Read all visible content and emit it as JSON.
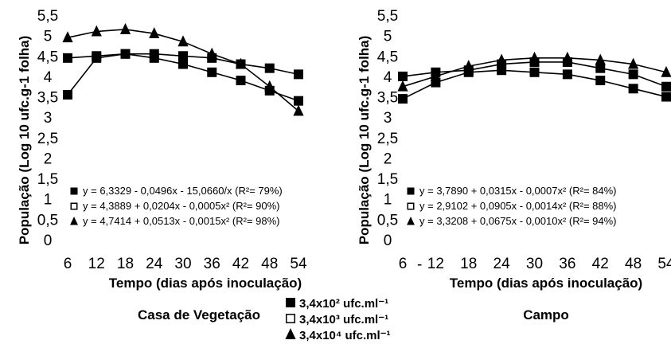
{
  "chart_data": [
    {
      "type": "line",
      "title": "Casa de Vegetação",
      "xlabel": "Tempo (dias após inoculação)",
      "ylabel": "População (Log 10 ufc.g-1 folha)",
      "x": [
        6,
        12,
        18,
        24,
        30,
        36,
        42,
        48,
        54
      ],
      "x_ticks": [
        "6",
        "12",
        "18",
        "24",
        "30",
        "36",
        "42",
        "48",
        "54"
      ],
      "y_ticks": [
        "0",
        "0,5",
        "1",
        "1,5",
        "2",
        "2,5",
        "3",
        "3,5",
        "4",
        "4,5",
        "5",
        "5,5"
      ],
      "ylim": [
        0,
        5.5
      ],
      "series": [
        {
          "marker": "square",
          "values": [
            3.55,
            4.45,
            4.55,
            4.45,
            4.3,
            4.1,
            3.9,
            3.65,
            3.4
          ]
        },
        {
          "marker": "square",
          "values": [
            4.45,
            4.5,
            4.55,
            4.55,
            4.5,
            4.45,
            4.3,
            4.2,
            4.05
          ]
        },
        {
          "marker": "triangle",
          "values": [
            4.95,
            5.1,
            5.15,
            5.05,
            4.85,
            4.55,
            4.3,
            3.75,
            3.15
          ]
        }
      ],
      "equations": [
        {
          "marker": "filled-square",
          "text": "y = 6,3329 - 0,0496x - 15,0660/x (R²= 79%)"
        },
        {
          "marker": "open-square",
          "text": "y = 4,3889 + 0,0204x - 0,0005x² (R²= 90%)"
        },
        {
          "marker": "filled-triangle",
          "text": "y = 4,7414 + 0,0513x - 0,0015x² (R²= 98%)"
        }
      ]
    },
    {
      "type": "line",
      "title": "Campo",
      "xlabel": "Tempo (dias após inoculação)",
      "ylabel": "População (Log 10 ufc.g-1 folha)",
      "x": [
        6,
        12,
        18,
        24,
        30,
        36,
        42,
        48,
        54
      ],
      "x_ticks": [
        "6",
        "12",
        "18",
        "24",
        "30",
        "36",
        "42",
        "48",
        "54"
      ],
      "y_ticks": [
        "0",
        "0,5",
        "1",
        "1,5",
        "2",
        "2,5",
        "3",
        "3,5",
        "4",
        "4,5",
        "5",
        "5,5"
      ],
      "ylim": [
        0,
        5.5
      ],
      "series": [
        {
          "marker": "square",
          "values": [
            3.45,
            3.85,
            4.1,
            4.15,
            4.1,
            4.05,
            3.9,
            3.7,
            3.5
          ]
        },
        {
          "marker": "square",
          "values": [
            4.0,
            4.1,
            4.15,
            4.3,
            4.35,
            4.35,
            4.2,
            4.05,
            3.75
          ]
        },
        {
          "marker": "triangle",
          "values": [
            3.75,
            4.0,
            4.25,
            4.4,
            4.45,
            4.45,
            4.4,
            4.3,
            4.1
          ]
        }
      ],
      "equations": [
        {
          "marker": "filled-square",
          "text": "y = 3,7890 + 0,0315x - 0,0007x² (R²= 84%)"
        },
        {
          "marker": "open-square",
          "text": "y = 2,9102 + 0,0905x - 0,0014x² (R²= 88%)"
        },
        {
          "marker": "filled-triangle",
          "text": "y = 3,3208 + 0,0675x - 0,0010x² (R²= 94%)"
        }
      ]
    }
  ],
  "legend": [
    {
      "marker": "filled-square",
      "text": "3,4x10² ufc.ml⁻¹"
    },
    {
      "marker": "open-square",
      "text": "3,4x10³ ufc.ml⁻¹"
    },
    {
      "marker": "filled-triangle",
      "text": "3,4x10⁴ ufc.ml⁻¹"
    }
  ],
  "stray_mark": "-"
}
